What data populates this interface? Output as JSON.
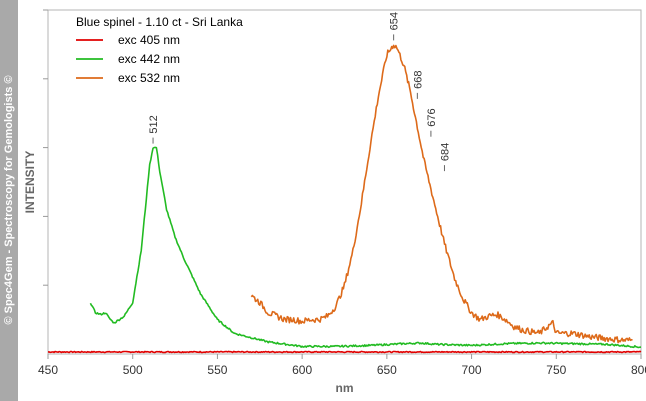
{
  "watermark": "© Spec4Gem - Spectroscopy for Gemologists ©",
  "chart_data": {
    "type": "line",
    "title": "Blue spinel - 1.10 ct - Sri Lanka",
    "xlabel": "nm",
    "ylabel": "INTENSITY",
    "xlim": [
      450,
      800
    ],
    "ylim": [
      0,
      100
    ],
    "xticks": [
      450,
      500,
      550,
      600,
      650,
      700,
      750,
      800
    ],
    "yticks": [
      20,
      40,
      60,
      80,
      100
    ],
    "y_tick_labels_shown": false,
    "grid": false,
    "legend_position": "top-left",
    "series": [
      {
        "name": "exc 405 nm",
        "color": "#e00000",
        "x": [
          450,
          500,
          550,
          600,
          650,
          700,
          750,
          800
        ],
        "y": [
          0.6,
          0.6,
          0.6,
          0.6,
          0.6,
          0.6,
          0.6,
          0.6
        ]
      },
      {
        "name": "exc 442 nm",
        "color": "#22bb22",
        "x": [
          475,
          478,
          481,
          484,
          486,
          489,
          492,
          495,
          500,
          505,
          508,
          510,
          512,
          514,
          516,
          520,
          525,
          530,
          540,
          550,
          560,
          580,
          600,
          620,
          640,
          660,
          670,
          680,
          700,
          720,
          740,
          760,
          780,
          800
        ],
        "y": [
          15,
          12,
          11.5,
          12,
          10.5,
          9,
          10,
          11,
          15,
          30,
          45,
          55,
          60,
          60,
          53,
          42,
          34,
          28,
          17.5,
          10,
          6,
          3.5,
          2.2,
          2.2,
          2.5,
          3,
          3.2,
          2.8,
          2.5,
          3,
          3.2,
          3,
          2.8,
          2
        ]
      },
      {
        "name": "exc 532 nm",
        "color": "#dd6a1a",
        "x": [
          570,
          575,
          580,
          585,
          590,
          595,
          600,
          605,
          610,
          615,
          620,
          625,
          630,
          635,
          640,
          645,
          650,
          654,
          656,
          660,
          664,
          668,
          672,
          676,
          680,
          684,
          690,
          695,
          700,
          705,
          710,
          715,
          720,
          725,
          730,
          735,
          740,
          745,
          748,
          750,
          760,
          770,
          780,
          790,
          795
        ],
        "y": [
          17,
          15,
          12,
          11,
          10,
          10,
          9.5,
          10,
          10,
          11,
          14,
          20,
          30,
          44,
          60,
          75,
          87,
          90,
          89,
          84,
          76,
          66,
          56,
          48,
          40,
          32,
          22,
          16,
          12,
          10,
          11,
          11.5,
          10,
          8,
          7,
          6.5,
          6,
          8,
          9,
          6,
          6,
          5,
          4.5,
          4,
          4
        ]
      }
    ],
    "annotations": [
      {
        "label": "512",
        "x": 512,
        "y": 60
      },
      {
        "label": "654",
        "x": 654,
        "y": 90
      },
      {
        "label": "668",
        "x": 668,
        "y": 73
      },
      {
        "label": "676",
        "x": 676,
        "y": 62
      },
      {
        "label": "684",
        "x": 684,
        "y": 52
      }
    ]
  }
}
